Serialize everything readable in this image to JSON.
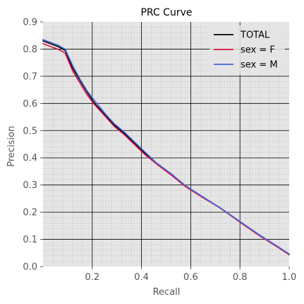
{
  "chart_data": {
    "type": "line",
    "title": "PRC Curve",
    "xlabel": "Recall",
    "ylabel": "Precision",
    "xlim": [
      0.0,
      1.0
    ],
    "ylim": [
      0.0,
      0.9
    ],
    "xticks": [
      0.2,
      0.4,
      0.6,
      0.8,
      1.0
    ],
    "xtick_labels": [
      "0.2",
      "0.4",
      "0.6",
      "0.8",
      "1.0"
    ],
    "yticks": [
      0.0,
      0.1,
      0.2,
      0.3,
      0.4,
      0.5,
      0.6,
      0.7,
      0.8,
      0.9
    ],
    "ytick_labels": [
      "0.0",
      "0.1",
      "0.2",
      "0.3",
      "0.4",
      "0.5",
      "0.6",
      "0.7",
      "0.8",
      "0.9"
    ],
    "grid": true,
    "legend_position": "top-right",
    "series": [
      {
        "name": "TOTAL",
        "color": "#000000",
        "x": [
          0.0,
          0.03,
          0.06,
          0.09,
          0.12,
          0.15,
          0.18,
          0.21,
          0.25,
          0.29,
          0.33,
          0.37,
          0.41,
          0.46,
          0.52,
          0.58,
          0.65,
          0.72,
          0.8,
          0.88,
          0.95,
          1.0
        ],
        "y": [
          0.83,
          0.82,
          0.81,
          0.795,
          0.73,
          0.685,
          0.64,
          0.6,
          0.56,
          0.52,
          0.49,
          0.455,
          0.42,
          0.38,
          0.34,
          0.295,
          0.255,
          0.215,
          0.165,
          0.115,
          0.075,
          0.045
        ]
      },
      {
        "name": "sex = F",
        "color": "#dc143c",
        "x": [
          0.0,
          0.03,
          0.06,
          0.09,
          0.12,
          0.15,
          0.18,
          0.21,
          0.25,
          0.29,
          0.33,
          0.37,
          0.41,
          0.46,
          0.52,
          0.58,
          0.65,
          0.72,
          0.8,
          0.88,
          0.95,
          1.0
        ],
        "y": [
          0.82,
          0.81,
          0.8,
          0.785,
          0.72,
          0.675,
          0.63,
          0.595,
          0.555,
          0.515,
          0.485,
          0.45,
          0.415,
          0.378,
          0.337,
          0.293,
          0.253,
          0.215,
          0.163,
          0.113,
          0.073,
          0.043
        ]
      },
      {
        "name": "sex = M",
        "color": "#4169e1",
        "x": [
          0.0,
          0.03,
          0.06,
          0.09,
          0.12,
          0.15,
          0.18,
          0.21,
          0.25,
          0.29,
          0.33,
          0.37,
          0.41,
          0.46,
          0.52,
          0.58,
          0.65,
          0.72,
          0.8,
          0.88,
          0.95,
          1.0
        ],
        "y": [
          0.835,
          0.825,
          0.815,
          0.8,
          0.74,
          0.69,
          0.645,
          0.61,
          0.565,
          0.525,
          0.495,
          0.46,
          0.425,
          0.382,
          0.342,
          0.297,
          0.256,
          0.216,
          0.166,
          0.116,
          0.076,
          0.046
        ]
      }
    ]
  }
}
